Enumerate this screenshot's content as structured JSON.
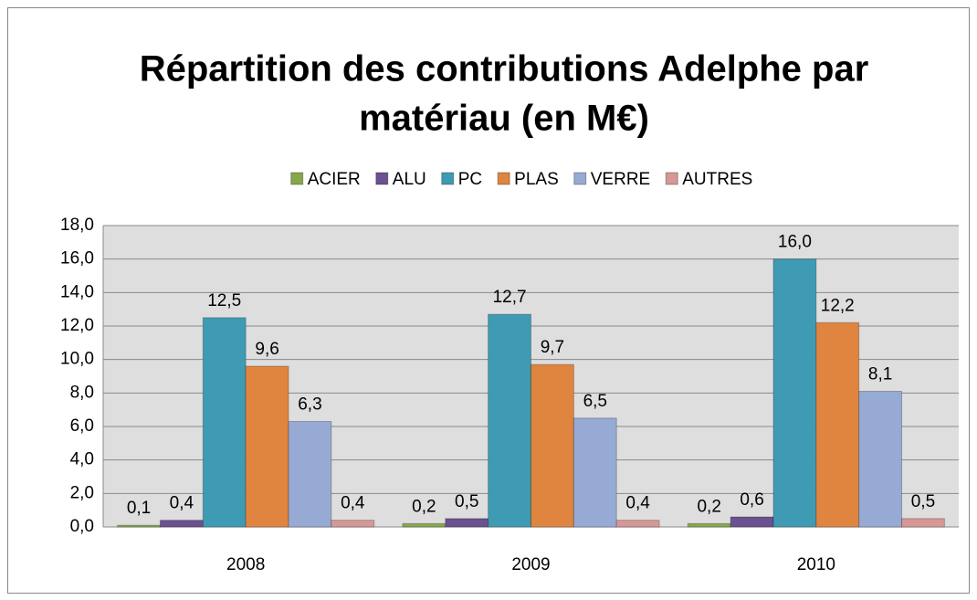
{
  "chart_data": {
    "type": "bar",
    "title": [
      "Répartition des contributions Adelphe par",
      "matériau (en M€)"
    ],
    "categories": [
      "2008",
      "2009",
      "2010"
    ],
    "series": [
      {
        "name": "ACIER",
        "color": "#86a84a",
        "values": [
          0.1,
          0.2,
          0.2
        ],
        "value_labels": [
          "0,1",
          "0,2",
          "0,2"
        ]
      },
      {
        "name": "ALU",
        "color": "#6b5190",
        "values": [
          0.4,
          0.5,
          0.6
        ],
        "value_labels": [
          "0,4",
          "0,5",
          "0,6"
        ]
      },
      {
        "name": "PC",
        "color": "#3f9bb3",
        "values": [
          12.5,
          12.7,
          16.0
        ],
        "value_labels": [
          "12,5",
          "12,7",
          "16,0"
        ]
      },
      {
        "name": "PLAS",
        "color": "#df8540",
        "values": [
          9.6,
          9.7,
          12.2
        ],
        "value_labels": [
          "9,6",
          "9,7",
          "12,2"
        ]
      },
      {
        "name": "VERRE",
        "color": "#97aad4",
        "values": [
          6.3,
          6.5,
          8.1
        ],
        "value_labels": [
          "6,3",
          "6,5",
          "8,1"
        ]
      },
      {
        "name": "AUTRES",
        "color": "#d69896",
        "values": [
          0.4,
          0.4,
          0.5
        ],
        "value_labels": [
          "0,4",
          "0,4",
          "0,5"
        ]
      }
    ],
    "ylim": [
      0,
      18
    ],
    "yticks": [
      {
        "value": 0,
        "label": "0,0"
      },
      {
        "value": 2,
        "label": "2,0"
      },
      {
        "value": 4,
        "label": "4,0"
      },
      {
        "value": 6,
        "label": "6,0"
      },
      {
        "value": 8,
        "label": "8,0"
      },
      {
        "value": 10,
        "label": "10,0"
      },
      {
        "value": 12,
        "label": "12,0"
      },
      {
        "value": 14,
        "label": "14,0"
      },
      {
        "value": 16,
        "label": "16,0"
      },
      {
        "value": 18,
        "label": "18,0"
      }
    ],
    "grid": true,
    "legend": "top"
  }
}
